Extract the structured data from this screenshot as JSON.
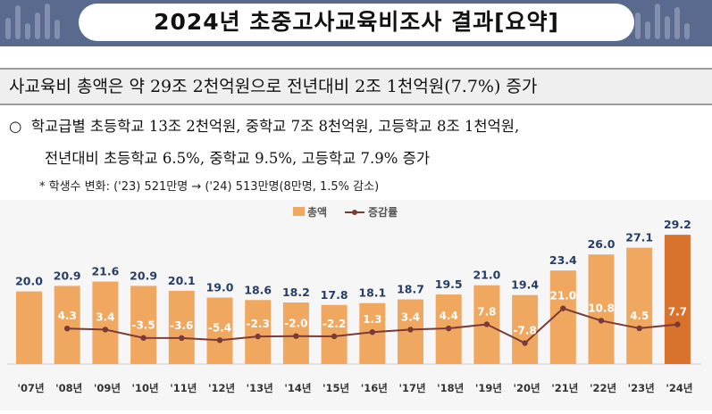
{
  "header": {
    "title": "2024년 초중고사교육비조사 결과[요약]"
  },
  "headline": "사교육비 총액은 약 29조 2천억원으로 전년대비 2조 1천억원(7.7%) 증가",
  "bullet": {
    "marker": "○",
    "line1": "학교급별 초등학교 13조 2천억원, 중학교 7조 8천억원, 고등학교 8조 1천억원,",
    "line2": "전년대비 초등학교 6.5%, 중학교 9.5%, 고등학교 7.9% 증가",
    "note": "* 학생수 변화: ('23) 521만명 → ('24) 513만명(8만명, 1.5% 감소)"
  },
  "colors": {
    "bar": "#f0a860",
    "bar_highlight": "#d8722c",
    "line": "#7a3a36",
    "value_label": "#263d66",
    "rate_label": "#ffffff"
  },
  "chart_data": {
    "type": "bar",
    "categories": [
      "'07년",
      "'08년",
      "'09년",
      "'10년",
      "'11년",
      "'12년",
      "'13년",
      "'14년",
      "'15년",
      "'16년",
      "'17년",
      "'18년",
      "'19년",
      "'20년",
      "'21년",
      "'22년",
      "'23년",
      "'24년"
    ],
    "series": [
      {
        "name": "총액",
        "type": "bar",
        "values": [
          20.0,
          20.9,
          21.6,
          20.9,
          20.1,
          19.0,
          18.6,
          18.2,
          17.8,
          18.1,
          18.7,
          19.5,
          21.0,
          19.4,
          23.4,
          26.0,
          27.1,
          29.2
        ]
      },
      {
        "name": "증감률",
        "type": "line",
        "values": [
          null,
          4.3,
          3.4,
          -3.5,
          -3.6,
          -5.4,
          -2.3,
          -2.0,
          -2.2,
          1.3,
          3.4,
          4.4,
          7.8,
          -7.8,
          21.0,
          10.8,
          4.5,
          7.7
        ]
      }
    ],
    "legend": [
      "총액",
      "증감률"
    ],
    "legend_position": "top-center",
    "highlight_category": "'24년"
  }
}
